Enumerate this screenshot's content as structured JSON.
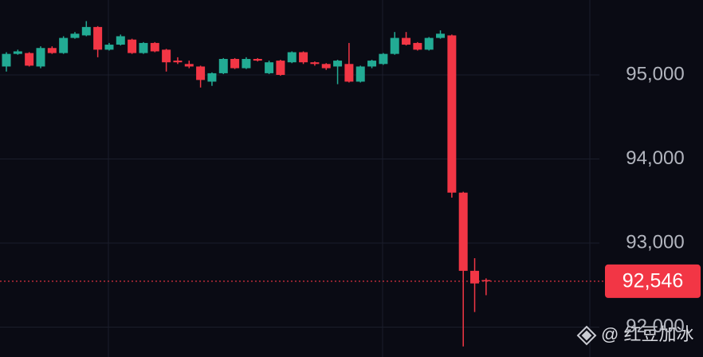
{
  "chart_data": {
    "type": "candlestick",
    "open": [
      95100,
      95250,
      95260,
      95100,
      95320,
      95260,
      95440,
      95470,
      95570,
      95300,
      95360,
      95420,
      95260,
      95380,
      95300,
      95170,
      95130,
      95100,
      94920,
      95020,
      95190,
      95080,
      95190,
      95020,
      95170,
      95150,
      95270,
      95150,
      95130,
      95100,
      95130,
      94920,
      95100,
      95130,
      95250,
      95440,
      95380,
      95300,
      95440,
      95470,
      93600,
      92670,
      92560
    ],
    "high": [
      95270,
      95300,
      95270,
      95340,
      95340,
      95460,
      95510,
      95640,
      95580,
      95380,
      95480,
      95430,
      95390,
      95390,
      95310,
      95210,
      95170,
      95110,
      95030,
      95200,
      95200,
      95210,
      95200,
      95170,
      95180,
      95280,
      95280,
      95160,
      95140,
      95180,
      95380,
      95110,
      95180,
      95260,
      95510,
      95510,
      95390,
      95450,
      95530,
      95480,
      93610,
      92820,
      92580
    ],
    "low": [
      95040,
      95240,
      95100,
      95080,
      95250,
      95250,
      95430,
      95460,
      95210,
      95290,
      95350,
      95250,
      95250,
      95270,
      95040,
      95130,
      95080,
      94850,
      94870,
      95010,
      95070,
      95070,
      95160,
      95010,
      94990,
      95140,
      95130,
      95110,
      95060,
      94890,
      94910,
      94910,
      95080,
      95120,
      95240,
      95350,
      95290,
      95290,
      95430,
      93540,
      91770,
      92180,
      92380
    ],
    "close": [
      95250,
      95280,
      95110,
      95320,
      95260,
      95440,
      95490,
      95570,
      95300,
      95360,
      95460,
      95260,
      95380,
      95280,
      95150,
      95150,
      95100,
      94940,
      95020,
      95190,
      95080,
      95190,
      95170,
      95150,
      95000,
      95270,
      95150,
      95130,
      95080,
      95170,
      94920,
      95100,
      95170,
      95250,
      95440,
      95360,
      95300,
      95440,
      95490,
      93600,
      92670,
      92520,
      92546
    ],
    "up_color": "#22ab94",
    "down_color": "#f23645",
    "ylim": [
      91645,
      95891
    ],
    "yticks": [
      {
        "value": 95000,
        "label": "95,000"
      },
      {
        "value": 94000,
        "label": "94,000"
      },
      {
        "value": 93000,
        "label": "93,000"
      },
      {
        "value": 92000,
        "label": "92,000"
      }
    ],
    "grid": true,
    "last_price": 92546,
    "last_price_label": "92,546",
    "watermark": "@ 红豆加冰"
  }
}
